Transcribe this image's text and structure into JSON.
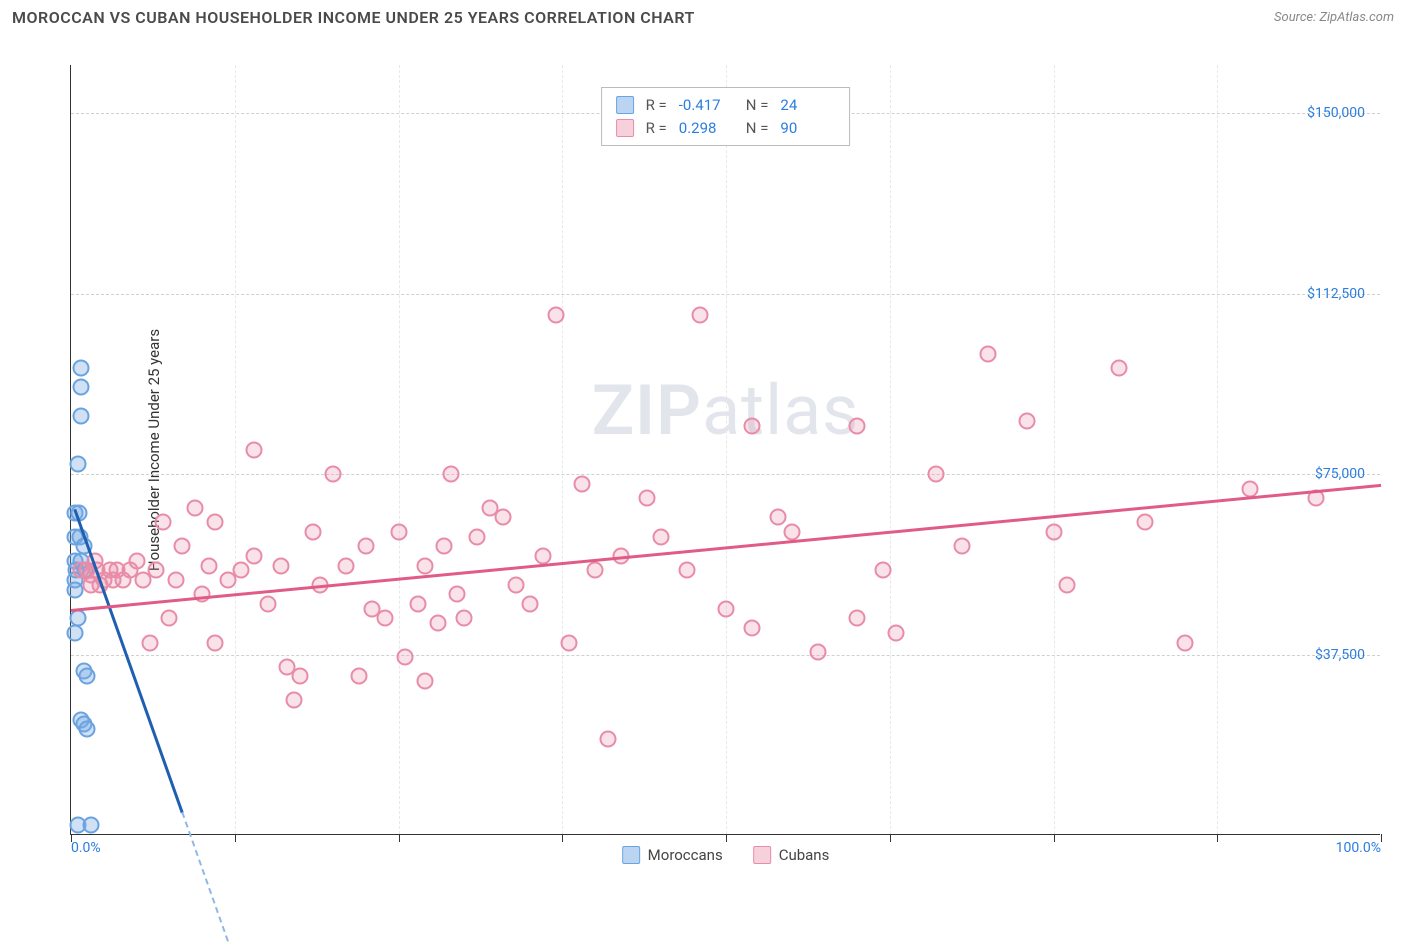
{
  "header": {
    "title": "MOROCCAN VS CUBAN HOUSEHOLDER INCOME UNDER 25 YEARS CORRELATION CHART",
    "source_prefix": "Source: ",
    "source_name": "ZipAtlas.com"
  },
  "watermark": {
    "part1": "ZIP",
    "part2": "atlas"
  },
  "chart": {
    "type": "scatter",
    "ylabel": "Householder Income Under 25 years",
    "xlim": [
      0,
      100
    ],
    "ylim": [
      0,
      160000
    ],
    "background_color": "#ffffff",
    "grid_color": "#d0d0d0",
    "axis_color": "#333333",
    "tick_label_color": "#2b7de0",
    "xticks": [
      {
        "value": 0,
        "label": "0.0%"
      },
      {
        "value": 12.5,
        "label": ""
      },
      {
        "value": 25,
        "label": ""
      },
      {
        "value": 37.5,
        "label": ""
      },
      {
        "value": 50,
        "label": ""
      },
      {
        "value": 62.5,
        "label": ""
      },
      {
        "value": 75,
        "label": ""
      },
      {
        "value": 87.5,
        "label": ""
      },
      {
        "value": 100,
        "label": "100.0%"
      }
    ],
    "yticks": [
      {
        "value": 37500,
        "label": "$37,500"
      },
      {
        "value": 75000,
        "label": "$75,000"
      },
      {
        "value": 112500,
        "label": "$112,500"
      },
      {
        "value": 150000,
        "label": "$150,000"
      }
    ],
    "series": [
      {
        "name": "Moroccans",
        "color_fill": "rgba(120,170,228,0.35)",
        "color_stroke": "#6aa3e0",
        "trend_color": "#1f5fb0",
        "marker_size": 17,
        "R": "-0.417",
        "N": "24",
        "trend": {
          "x1": 0.3,
          "y1": 68000,
          "x2": 8.5,
          "y2": 5000,
          "dash_extend_x": 12
        },
        "points": [
          [
            0.8,
            97000
          ],
          [
            0.8,
            93000
          ],
          [
            0.8,
            87000
          ],
          [
            0.5,
            77000
          ],
          [
            0.3,
            67000
          ],
          [
            0.6,
            67000
          ],
          [
            0.3,
            62000
          ],
          [
            0.7,
            62000
          ],
          [
            1.0,
            60000
          ],
          [
            0.3,
            57000
          ],
          [
            0.8,
            57000
          ],
          [
            0.4,
            55000
          ],
          [
            1.1,
            55000
          ],
          [
            0.3,
            53000
          ],
          [
            0.3,
            51000
          ],
          [
            0.5,
            45000
          ],
          [
            0.3,
            42000
          ],
          [
            1.0,
            34000
          ],
          [
            1.2,
            33000
          ],
          [
            0.8,
            24000
          ],
          [
            1.0,
            23000
          ],
          [
            1.2,
            22000
          ],
          [
            0.5,
            2000
          ],
          [
            1.5,
            2000
          ]
        ]
      },
      {
        "name": "Cubans",
        "color_fill": "rgba(232,140,168,0.25)",
        "color_stroke": "#e88ca8",
        "trend_color": "#e05b85",
        "marker_size": 17,
        "R": "0.298",
        "N": "90",
        "trend": {
          "x1": 0,
          "y1": 47000,
          "x2": 100,
          "y2": 73000
        },
        "points": [
          [
            0.8,
            55000
          ],
          [
            1.2,
            55000
          ],
          [
            1.5,
            54000
          ],
          [
            1.5,
            52000
          ],
          [
            1.8,
            57000
          ],
          [
            2.0,
            55000
          ],
          [
            2.2,
            52000
          ],
          [
            2.5,
            53000
          ],
          [
            3.0,
            55000
          ],
          [
            3.2,
            53000
          ],
          [
            3.5,
            55000
          ],
          [
            4.0,
            53000
          ],
          [
            4.5,
            55000
          ],
          [
            5.0,
            57000
          ],
          [
            5.5,
            53000
          ],
          [
            6.0,
            40000
          ],
          [
            6.5,
            55000
          ],
          [
            7.0,
            65000
          ],
          [
            7.5,
            45000
          ],
          [
            8.0,
            53000
          ],
          [
            8.5,
            60000
          ],
          [
            9.5,
            68000
          ],
          [
            10.0,
            50000
          ],
          [
            10.5,
            56000
          ],
          [
            11.0,
            65000
          ],
          [
            11.0,
            40000
          ],
          [
            12.0,
            53000
          ],
          [
            13.0,
            55000
          ],
          [
            14.0,
            58000
          ],
          [
            14.0,
            80000
          ],
          [
            15.0,
            48000
          ],
          [
            16.0,
            56000
          ],
          [
            16.5,
            35000
          ],
          [
            17.0,
            28000
          ],
          [
            17.5,
            33000
          ],
          [
            18.5,
            63000
          ],
          [
            19.0,
            52000
          ],
          [
            20.0,
            75000
          ],
          [
            21.0,
            56000
          ],
          [
            22.0,
            33000
          ],
          [
            22.5,
            60000
          ],
          [
            23.0,
            47000
          ],
          [
            24.0,
            45000
          ],
          [
            25.0,
            63000
          ],
          [
            25.5,
            37000
          ],
          [
            26.5,
            48000
          ],
          [
            27.0,
            56000
          ],
          [
            27.0,
            32000
          ],
          [
            28.0,
            44000
          ],
          [
            28.5,
            60000
          ],
          [
            29.0,
            75000
          ],
          [
            29.5,
            50000
          ],
          [
            30.0,
            45000
          ],
          [
            31.0,
            62000
          ],
          [
            32.0,
            68000
          ],
          [
            33.0,
            66000
          ],
          [
            34.0,
            52000
          ],
          [
            35.0,
            48000
          ],
          [
            36.0,
            58000
          ],
          [
            37.0,
            108000
          ],
          [
            38.0,
            40000
          ],
          [
            39.0,
            73000
          ],
          [
            40.0,
            55000
          ],
          [
            41.0,
            20000
          ],
          [
            42.0,
            58000
          ],
          [
            44.0,
            70000
          ],
          [
            45.0,
            62000
          ],
          [
            47.0,
            55000
          ],
          [
            48.0,
            108000
          ],
          [
            50.0,
            47000
          ],
          [
            52.0,
            85000
          ],
          [
            52.0,
            43000
          ],
          [
            54.0,
            66000
          ],
          [
            55.0,
            63000
          ],
          [
            57.0,
            38000
          ],
          [
            60.0,
            85000
          ],
          [
            60.0,
            45000
          ],
          [
            62.0,
            55000
          ],
          [
            63.0,
            42000
          ],
          [
            66.0,
            75000
          ],
          [
            68.0,
            60000
          ],
          [
            70.0,
            100000
          ],
          [
            73.0,
            86000
          ],
          [
            75.0,
            63000
          ],
          [
            76.0,
            52000
          ],
          [
            80.0,
            97000
          ],
          [
            82.0,
            65000
          ],
          [
            85.0,
            40000
          ],
          [
            90.0,
            72000
          ],
          [
            95.0,
            70000
          ]
        ]
      }
    ],
    "bottom_legend": [
      {
        "label": "Moroccans",
        "swatch": "blue"
      },
      {
        "label": "Cubans",
        "swatch": "pink"
      }
    ]
  }
}
